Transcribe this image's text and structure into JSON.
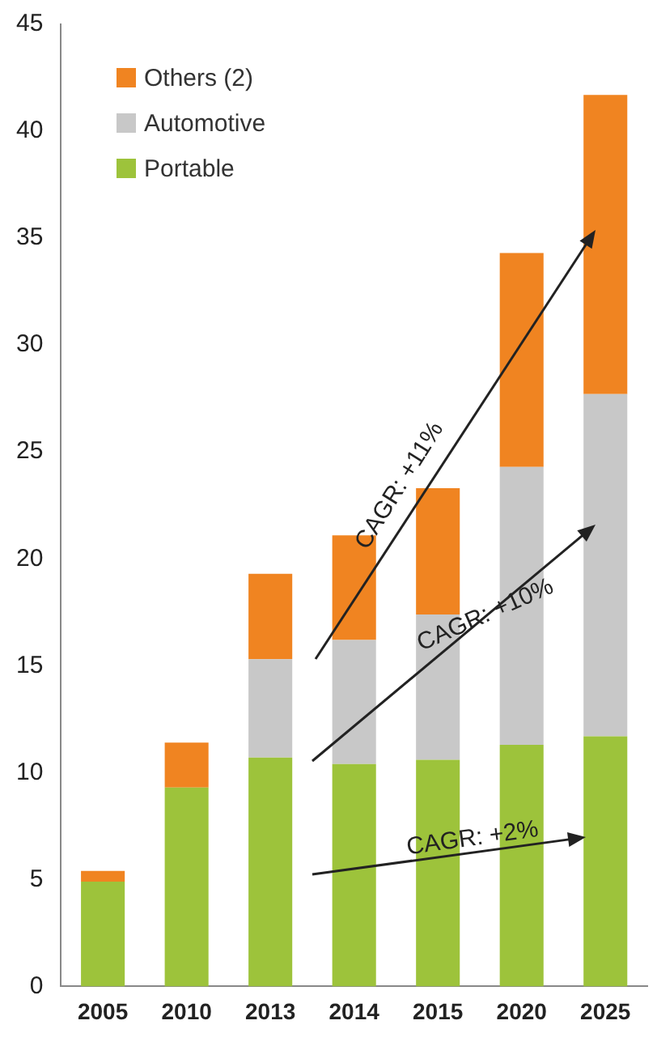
{
  "chart_data": {
    "type": "bar",
    "stacked": true,
    "categories": [
      "2005",
      "2010",
      "2013",
      "2014",
      "2015",
      "2020",
      "2025"
    ],
    "series": [
      {
        "name": "Portable",
        "color": "#9dc33b",
        "values": [
          4.9,
          9.3,
          10.7,
          10.4,
          10.6,
          11.3,
          11.7
        ]
      },
      {
        "name": "Automotive",
        "color": "#c8c8c8",
        "values": [
          0,
          0,
          4.6,
          5.8,
          6.8,
          13.0,
          16.0
        ]
      },
      {
        "name": "Others (2)",
        "color": "#f08421",
        "values": [
          0.5,
          2.1,
          4.0,
          4.9,
          5.9,
          10.0,
          14.0
        ]
      }
    ],
    "ylim": [
      0,
      45
    ],
    "yticks": [
      0,
      5,
      10,
      15,
      20,
      25,
      30,
      35,
      40,
      45
    ],
    "grid": false,
    "legend": "top left",
    "annotations": [
      "CAGR: +11%",
      "CAGR: +10%",
      "CAGR: +2%"
    ]
  }
}
